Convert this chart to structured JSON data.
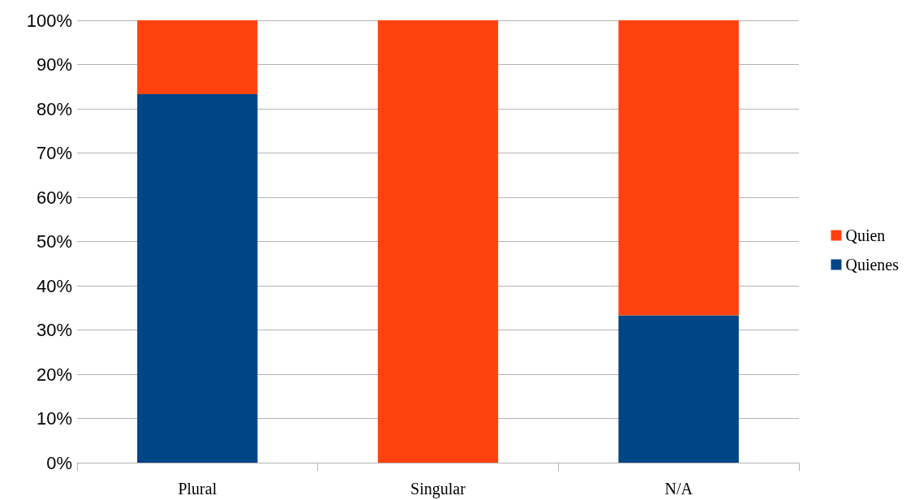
{
  "chart_data": {
    "type": "bar",
    "stacked": true,
    "categories": [
      "Plural",
      "Singular",
      "N/A"
    ],
    "series": [
      {
        "name": "Quienes",
        "color": "#004586",
        "values": [
          83.3,
          0,
          33.3
        ]
      },
      {
        "name": "Quien",
        "color": "#ff420e",
        "values": [
          16.7,
          100,
          66.7
        ]
      }
    ],
    "ylim": [
      0,
      100
    ],
    "yticks": [
      {
        "value": 0,
        "label": "0%"
      },
      {
        "value": 10,
        "label": "10%"
      },
      {
        "value": 20,
        "label": "20%"
      },
      {
        "value": 30,
        "label": "30%"
      },
      {
        "value": 40,
        "label": "40%"
      },
      {
        "value": 50,
        "label": "50%"
      },
      {
        "value": 60,
        "label": "60%"
      },
      {
        "value": 70,
        "label": "70%"
      },
      {
        "value": 80,
        "label": "80%"
      },
      {
        "value": 90,
        "label": "90%"
      },
      {
        "value": 100,
        "label": "100%"
      }
    ],
    "grid": true,
    "legend": "right"
  }
}
